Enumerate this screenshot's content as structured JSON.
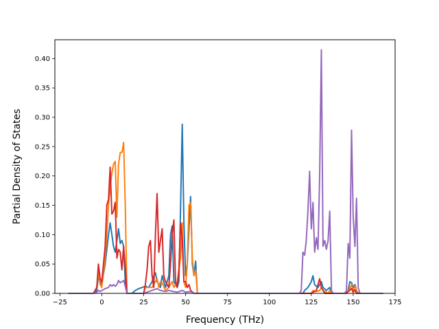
{
  "chart_data": {
    "type": "line",
    "title": "",
    "xlabel": "Frequency (THz)",
    "ylabel": "Partial Density of States",
    "xlim": [
      -28,
      175
    ],
    "ylim": [
      0,
      0.432
    ],
    "xticks": [
      -25,
      0,
      25,
      50,
      75,
      100,
      125,
      150,
      175
    ],
    "yticks": [
      0.0,
      0.05,
      0.1,
      0.15,
      0.2,
      0.25,
      0.3,
      0.35,
      0.4
    ],
    "xtick_labels": [
      "−25",
      "0",
      "25",
      "50",
      "75",
      "100",
      "125",
      "150",
      "175"
    ],
    "ytick_labels": [
      "0.00",
      "0.05",
      "0.10",
      "0.15",
      "0.20",
      "0.25",
      "0.30",
      "0.35",
      "0.40"
    ],
    "grid": false,
    "legend": false,
    "series": [
      {
        "color": "#1f77b4",
        "points": [
          [
            -20,
            0
          ],
          [
            -5,
            0
          ],
          [
            -3,
            0.005
          ],
          [
            -2,
            0.03
          ],
          [
            -1,
            0.02
          ],
          [
            0,
            0.015
          ],
          [
            2,
            0.05
          ],
          [
            4,
            0.1
          ],
          [
            5,
            0.12
          ],
          [
            6,
            0.1
          ],
          [
            7,
            0.08
          ],
          [
            8,
            0.07
          ],
          [
            9,
            0.09
          ],
          [
            10,
            0.11
          ],
          [
            11,
            0.085
          ],
          [
            12,
            0.09
          ],
          [
            13,
            0.08
          ],
          [
            14,
            0.02
          ],
          [
            15,
            0
          ],
          [
            18,
            0
          ],
          [
            20,
            0.005
          ],
          [
            22,
            0.008
          ],
          [
            24,
            0.01
          ],
          [
            26,
            0.012
          ],
          [
            28,
            0.01
          ],
          [
            30,
            0.02
          ],
          [
            31,
            0.03
          ],
          [
            32,
            0.035
          ],
          [
            33,
            0.02
          ],
          [
            35,
            0.01
          ],
          [
            36,
            0.03
          ],
          [
            37,
            0.02
          ],
          [
            38,
            0.01
          ],
          [
            40,
            0.03
          ],
          [
            41,
            0.1
          ],
          [
            42,
            0.115
          ],
          [
            43,
            0.02
          ],
          [
            45,
            0.01
          ],
          [
            46,
            0.02
          ],
          [
            47,
            0.15
          ],
          [
            48,
            0.288
          ],
          [
            49,
            0.12
          ],
          [
            50,
            0.03
          ],
          [
            51,
            0.05
          ],
          [
            52,
            0.11
          ],
          [
            53,
            0.165
          ],
          [
            54,
            0.05
          ],
          [
            55,
            0.03
          ],
          [
            56,
            0.055
          ],
          [
            57,
            0
          ],
          [
            60,
            0
          ],
          [
            118,
            0
          ],
          [
            120,
            0
          ],
          [
            121,
            0.005
          ],
          [
            123,
            0.01
          ],
          [
            125,
            0.02
          ],
          [
            126,
            0.03
          ],
          [
            127,
            0.015
          ],
          [
            128,
            0.012
          ],
          [
            129,
            0.01
          ],
          [
            131,
            0.02
          ],
          [
            132,
            0.01
          ],
          [
            134,
            0.005
          ],
          [
            136,
            0.01
          ],
          [
            137,
            0
          ],
          [
            145,
            0
          ],
          [
            147,
            0.005
          ],
          [
            148,
            0.02
          ],
          [
            149,
            0.018
          ],
          [
            150,
            0.01
          ],
          [
            151,
            0.015
          ],
          [
            152,
            0.005
          ],
          [
            153,
            0
          ],
          [
            168,
            0
          ]
        ]
      },
      {
        "color": "#ff7f0e",
        "points": [
          [
            -20,
            0
          ],
          [
            -5,
            0
          ],
          [
            -3,
            0.01
          ],
          [
            -2,
            0.035
          ],
          [
            -1,
            0.015
          ],
          [
            0,
            0.01
          ],
          [
            2,
            0.06
          ],
          [
            3,
            0.1
          ],
          [
            4,
            0.15
          ],
          [
            5,
            0.18
          ],
          [
            6,
            0.205
          ],
          [
            7,
            0.22
          ],
          [
            8,
            0.225
          ],
          [
            9,
            0.13
          ],
          [
            10,
            0.22
          ],
          [
            11,
            0.24
          ],
          [
            12,
            0.24
          ],
          [
            13,
            0.257
          ],
          [
            14,
            0.15
          ],
          [
            15,
            0
          ],
          [
            25,
            0
          ],
          [
            26,
            0.01
          ],
          [
            27,
            0.01
          ],
          [
            29,
            0.01
          ],
          [
            30,
            0.01
          ],
          [
            32,
            0.02
          ],
          [
            33,
            0.025
          ],
          [
            34,
            0.01
          ],
          [
            35,
            0.02
          ],
          [
            36,
            0.018
          ],
          [
            38,
            0.005
          ],
          [
            40,
            0.01
          ],
          [
            42,
            0.02
          ],
          [
            43,
            0.01
          ],
          [
            45,
            0.02
          ],
          [
            47,
            0.06
          ],
          [
            48,
            0.12
          ],
          [
            49,
            0.02
          ],
          [
            50,
            0.01
          ],
          [
            51,
            0.05
          ],
          [
            52,
            0.15
          ],
          [
            53,
            0.155
          ],
          [
            54,
            0.06
          ],
          [
            55,
            0.03
          ],
          [
            56,
            0.04
          ],
          [
            57,
            0
          ],
          [
            60,
            0
          ],
          [
            125,
            0
          ],
          [
            126,
            0.005
          ],
          [
            128,
            0.003
          ],
          [
            130,
            0.005
          ],
          [
            131,
            0.01
          ],
          [
            132,
            0.005
          ],
          [
            135,
            0
          ],
          [
            136,
            0.005
          ],
          [
            137,
            0
          ],
          [
            145,
            0
          ],
          [
            147,
            0.005
          ],
          [
            148,
            0.008
          ],
          [
            149,
            0.015
          ],
          [
            150,
            0.005
          ],
          [
            151,
            0.012
          ],
          [
            152,
            0.005
          ],
          [
            153,
            0
          ],
          [
            168,
            0
          ]
        ]
      },
      {
        "color": "#d62728",
        "points": [
          [
            -20,
            0
          ],
          [
            -5,
            0
          ],
          [
            -3,
            0.01
          ],
          [
            -2,
            0.05
          ],
          [
            -1,
            0.025
          ],
          [
            0,
            0.02
          ],
          [
            2,
            0.08
          ],
          [
            3,
            0.15
          ],
          [
            4,
            0.16
          ],
          [
            5,
            0.215
          ],
          [
            6,
            0.135
          ],
          [
            7,
            0.14
          ],
          [
            8,
            0.155
          ],
          [
            9,
            0.06
          ],
          [
            10,
            0.075
          ],
          [
            11,
            0.07
          ],
          [
            12,
            0.04
          ],
          [
            13,
            0.08
          ],
          [
            14,
            0.045
          ],
          [
            15,
            0
          ],
          [
            25,
            0
          ],
          [
            26,
            0.015
          ],
          [
            27,
            0.04
          ],
          [
            28,
            0.08
          ],
          [
            29,
            0.09
          ],
          [
            30,
            0.03
          ],
          [
            31,
            0.01
          ],
          [
            32,
            0.1
          ],
          [
            33,
            0.17
          ],
          [
            34,
            0.07
          ],
          [
            35,
            0.09
          ],
          [
            36,
            0.11
          ],
          [
            37,
            0.03
          ],
          [
            38,
            0.02
          ],
          [
            40,
            0.01
          ],
          [
            41,
            0.05
          ],
          [
            42,
            0.1
          ],
          [
            43,
            0.125
          ],
          [
            44,
            0.02
          ],
          [
            45,
            0.01
          ],
          [
            46,
            0.04
          ],
          [
            47,
            0.12
          ],
          [
            48,
            0.09
          ],
          [
            49,
            0.02
          ],
          [
            50,
            0.02
          ],
          [
            51,
            0.01
          ],
          [
            52,
            0.015
          ],
          [
            53,
            0.005
          ],
          [
            55,
            0
          ],
          [
            60,
            0
          ],
          [
            125,
            0
          ],
          [
            128,
            0.005
          ],
          [
            129,
            0.015
          ],
          [
            130,
            0.025
          ],
          [
            131,
            0.01
          ],
          [
            132,
            0.005
          ],
          [
            133,
            0
          ],
          [
            146,
            0
          ],
          [
            147,
            0.003
          ],
          [
            148,
            0.005
          ],
          [
            149,
            0.008
          ],
          [
            150,
            0.002
          ],
          [
            151,
            0.006
          ],
          [
            152,
            0
          ],
          [
            168,
            0
          ]
        ]
      },
      {
        "color": "#9467bd",
        "points": [
          [
            -20,
            0
          ],
          [
            -5,
            0
          ],
          [
            -3,
            0.002
          ],
          [
            -2,
            0.005
          ],
          [
            -1,
            0.003
          ],
          [
            0,
            0.005
          ],
          [
            2,
            0.008
          ],
          [
            4,
            0.01
          ],
          [
            5,
            0.015
          ],
          [
            6,
            0.012
          ],
          [
            7,
            0.015
          ],
          [
            8,
            0.012
          ],
          [
            9,
            0.015
          ],
          [
            10,
            0.022
          ],
          [
            11,
            0.018
          ],
          [
            12,
            0.02
          ],
          [
            13,
            0.022
          ],
          [
            14,
            0.012
          ],
          [
            15,
            0
          ],
          [
            25,
            0
          ],
          [
            27,
            0.002
          ],
          [
            30,
            0.005
          ],
          [
            33,
            0.008
          ],
          [
            35,
            0.005
          ],
          [
            38,
            0.003
          ],
          [
            40,
            0.005
          ],
          [
            43,
            0.003
          ],
          [
            45,
            0.002
          ],
          [
            48,
            0.005
          ],
          [
            50,
            0.002
          ],
          [
            53,
            0.003
          ],
          [
            55,
            0
          ],
          [
            60,
            0
          ],
          [
            118,
            0
          ],
          [
            119,
            0.005
          ],
          [
            120,
            0.07
          ],
          [
            121,
            0.065
          ],
          [
            122,
            0.09
          ],
          [
            123,
            0.14
          ],
          [
            124,
            0.208
          ],
          [
            125,
            0.11
          ],
          [
            126,
            0.155
          ],
          [
            127,
            0.07
          ],
          [
            128,
            0.095
          ],
          [
            129,
            0.075
          ],
          [
            130,
            0.2
          ],
          [
            131,
            0.415
          ],
          [
            132,
            0.08
          ],
          [
            133,
            0.09
          ],
          [
            134,
            0.075
          ],
          [
            135,
            0.09
          ],
          [
            136,
            0.14
          ],
          [
            137,
            0.005
          ],
          [
            138,
            0
          ],
          [
            145,
            0
          ],
          [
            146,
            0.005
          ],
          [
            147,
            0.085
          ],
          [
            148,
            0.06
          ],
          [
            149,
            0.278
          ],
          [
            150,
            0.13
          ],
          [
            151,
            0.08
          ],
          [
            152,
            0.162
          ],
          [
            153,
            0.01
          ],
          [
            154,
            0
          ],
          [
            168,
            0
          ]
        ]
      }
    ]
  }
}
